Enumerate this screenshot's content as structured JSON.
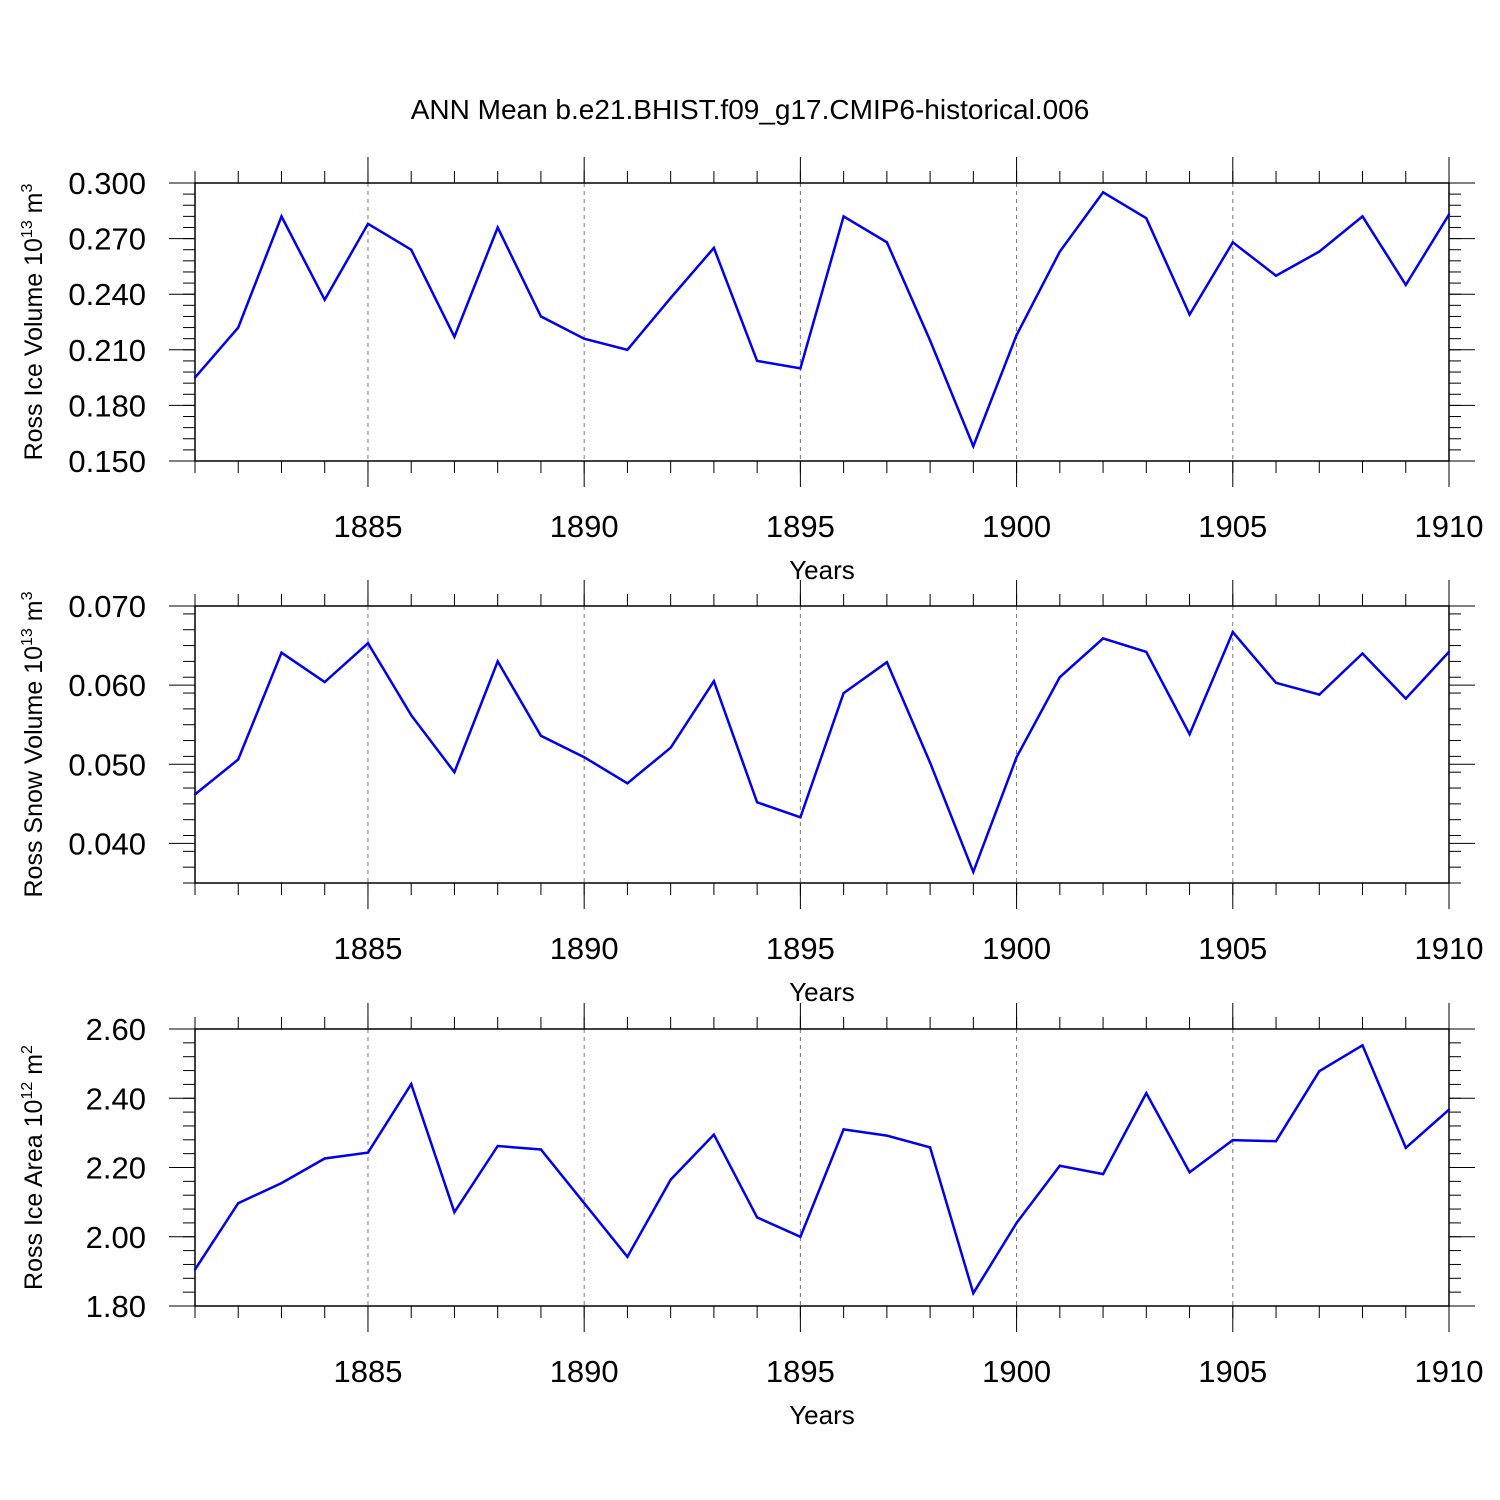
{
  "title": "ANN Mean b.e21.BHIST.f09_g17.CMIP6-historical.006",
  "chart_data": [
    {
      "type": "line",
      "id": "ice-volume",
      "ylabel_main": "Ross Ice Volume 10",
      "ylabel_exp": "13",
      "ylabel_unit": " m",
      "ylabel_unit_exp": "3",
      "xlabel": "Years",
      "xlim": [
        1881,
        1910
      ],
      "ylim": [
        0.15,
        0.3
      ],
      "xticks": [
        "1885",
        "1890",
        "1895",
        "1900",
        "1905",
        "1910"
      ],
      "yticks": [
        "0.150",
        "0.180",
        "0.210",
        "0.240",
        "0.270",
        "0.300"
      ],
      "line_color": "#0000ee",
      "x": [
        1881,
        1882,
        1883,
        1884,
        1885,
        1886,
        1887,
        1888,
        1889,
        1890,
        1891,
        1892,
        1893,
        1894,
        1895,
        1896,
        1897,
        1898,
        1899,
        1900,
        1901,
        1902,
        1903,
        1904,
        1905,
        1906,
        1907,
        1908,
        1909,
        1910
      ],
      "values": [
        0.195,
        0.222,
        0.282,
        0.237,
        0.278,
        0.264,
        0.217,
        0.276,
        0.228,
        0.216,
        0.21,
        0.238,
        0.265,
        0.204,
        0.2,
        0.282,
        0.268,
        0.215,
        0.158,
        0.218,
        0.263,
        0.295,
        0.281,
        0.229,
        0.268,
        0.25,
        0.263,
        0.282,
        0.245,
        0.283
      ]
    },
    {
      "type": "line",
      "id": "snow-volume",
      "ylabel_main": "Ross Snow Volume 10",
      "ylabel_exp": "13",
      "ylabel_unit": " m",
      "ylabel_unit_exp": "3",
      "xlabel": "Years",
      "xlim": [
        1881,
        1910
      ],
      "ylim": [
        0.035,
        0.07
      ],
      "xticks": [
        "1885",
        "1890",
        "1895",
        "1900",
        "1905",
        "1910"
      ],
      "yticks": [
        "0.040",
        "0.050",
        "0.060",
        "0.070"
      ],
      "line_color": "#0000ee",
      "x": [
        1881,
        1882,
        1883,
        1884,
        1885,
        1886,
        1887,
        1888,
        1889,
        1890,
        1891,
        1892,
        1893,
        1894,
        1895,
        1896,
        1897,
        1898,
        1899,
        1900,
        1901,
        1902,
        1903,
        1904,
        1905,
        1906,
        1907,
        1908,
        1909,
        1910
      ],
      "values": [
        0.0462,
        0.0506,
        0.0641,
        0.0604,
        0.0653,
        0.0562,
        0.049,
        0.063,
        0.0536,
        0.0509,
        0.0476,
        0.0521,
        0.0605,
        0.0452,
        0.0433,
        0.059,
        0.0629,
        0.0502,
        0.0364,
        0.0509,
        0.061,
        0.0659,
        0.0642,
        0.0538,
        0.0667,
        0.0603,
        0.0588,
        0.064,
        0.0583,
        0.0642
      ]
    },
    {
      "type": "line",
      "id": "ice-area",
      "ylabel_main": "Ross Ice Area 10",
      "ylabel_exp": "12",
      "ylabel_unit": " m",
      "ylabel_unit_exp": "2",
      "xlabel": "Years",
      "xlim": [
        1881,
        1910
      ],
      "ylim": [
        1.8,
        2.6
      ],
      "xticks": [
        "1885",
        "1890",
        "1895",
        "1900",
        "1905",
        "1910"
      ],
      "yticks": [
        "1.80",
        "2.00",
        "2.20",
        "2.40",
        "2.60"
      ],
      "line_color": "#0000ee",
      "x": [
        1881,
        1882,
        1883,
        1884,
        1885,
        1886,
        1887,
        1888,
        1889,
        1890,
        1891,
        1892,
        1893,
        1894,
        1895,
        1896,
        1897,
        1898,
        1899,
        1900,
        1901,
        1902,
        1903,
        1904,
        1905,
        1906,
        1907,
        1908,
        1909,
        1910
      ],
      "values": [
        1.905,
        2.097,
        2.155,
        2.226,
        2.243,
        2.441,
        2.071,
        2.262,
        2.252,
        2.097,
        1.942,
        2.165,
        2.295,
        2.056,
        2.0,
        2.31,
        2.292,
        2.258,
        1.837,
        2.04,
        2.205,
        2.181,
        2.415,
        2.186,
        2.279,
        2.276,
        2.478,
        2.553,
        2.257,
        2.367
      ]
    }
  ]
}
